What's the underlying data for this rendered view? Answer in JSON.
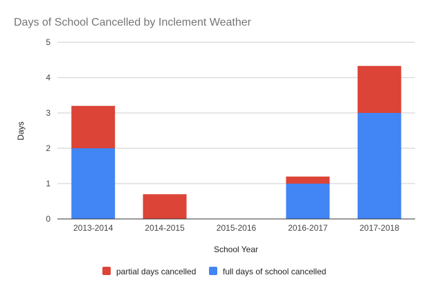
{
  "chart_data": {
    "type": "bar",
    "stacked": true,
    "title": "Days of School Cancelled by Inclement Weather",
    "xlabel": "School Year",
    "ylabel": "Days",
    "ylim": [
      0,
      5
    ],
    "yticks": [
      "0",
      "1",
      "2",
      "3",
      "4",
      "5"
    ],
    "categories": [
      "2013-2014",
      "2014-2015",
      "2015-2016",
      "2016-2017",
      "2017-2018"
    ],
    "series": [
      {
        "name": "full days of school cancelled",
        "color": "#4285f4",
        "values": [
          2,
          0,
          0,
          1,
          3
        ]
      },
      {
        "name": "partial days cancelled",
        "color": "#db4437",
        "values": [
          1.2,
          0.7,
          0,
          0.2,
          1.33
        ]
      }
    ],
    "legend_order": [
      "partial days cancelled",
      "full days of school cancelled"
    ],
    "legend_position": "bottom",
    "grid": true
  }
}
